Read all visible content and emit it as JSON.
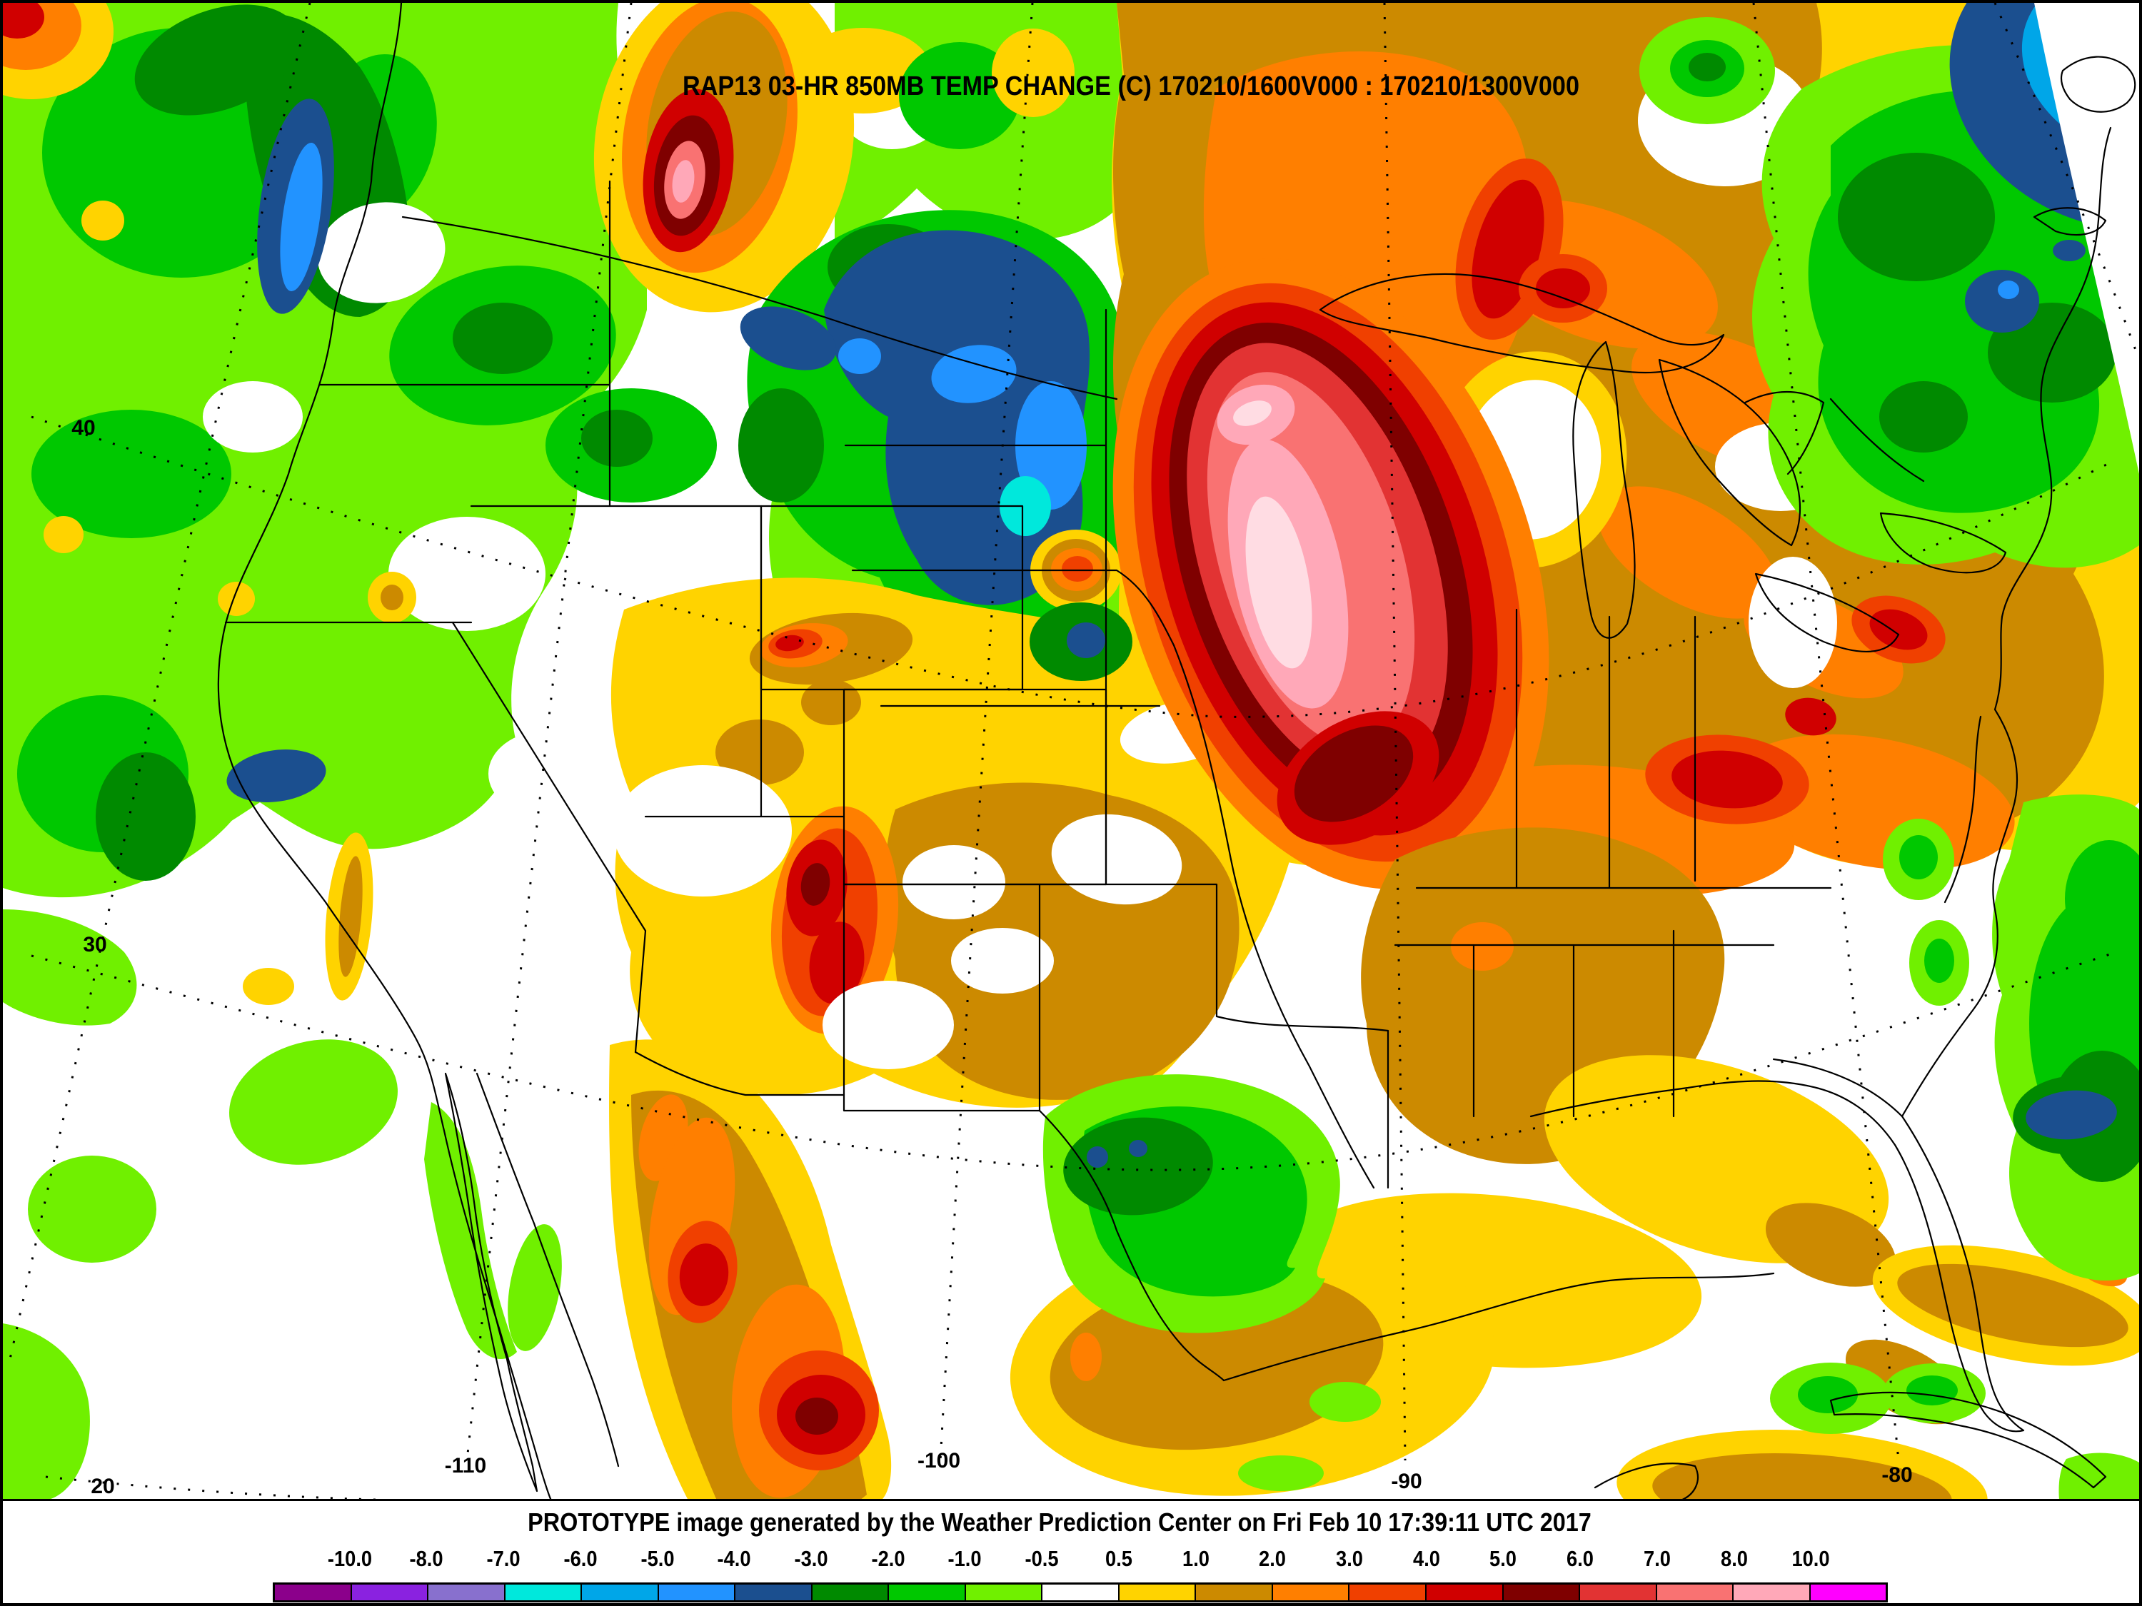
{
  "title": "RAP13 03-HR 850MB TEMP CHANGE (C) 170210/1600V000 : 170210/1300V000",
  "footer": "PROTOTYPE image generated by the Weather Prediction Center on Fri Feb 10 17:39:11 UTC 2017",
  "map": {
    "lat_labels": [
      {
        "text": "40"
      },
      {
        "text": "30"
      },
      {
        "text": "20"
      }
    ],
    "lon_labels": [
      {
        "text": "-110"
      },
      {
        "text": "-100"
      },
      {
        "text": "-90"
      },
      {
        "text": "-80"
      }
    ]
  },
  "colorbar": {
    "tick_labels": [
      "-10.0",
      "-8.0",
      "-7.0",
      "-6.0",
      "-5.0",
      "-4.0",
      "-3.0",
      "-2.0",
      "-1.0",
      "-0.5",
      "0.5",
      "1.0",
      "2.0",
      "3.0",
      "4.0",
      "5.0",
      "6.0",
      "7.0",
      "8.0",
      "10.0"
    ],
    "colors": [
      "#8B008B",
      "#8A22E0",
      "#8870CE",
      "#00E8DC",
      "#00A6E8",
      "#2293FF",
      "#1B4F8F",
      "#008A00",
      "#00C800",
      "#70F000",
      "#FFFFFF",
      "#FFD300",
      "#CC8A00",
      "#FF7F00",
      "#F04000",
      "#D00000",
      "#7F0000",
      "#E23333",
      "#F97272",
      "#FFA8B8",
      "#FF00FF"
    ]
  },
  "palette_extra": {
    "pale_pink": "#FFDCE3"
  }
}
